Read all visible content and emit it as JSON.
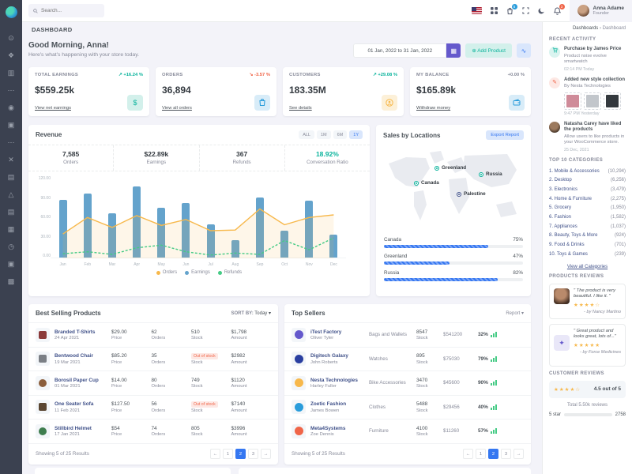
{
  "topbar": {
    "search_placeholder": "Search...",
    "cart_badge": "5",
    "notif_badge": "3",
    "user": {
      "name": "Anna Adame",
      "role": "Founder"
    },
    "icons": [
      "us-flag",
      "apps-grid",
      "shopping-bag",
      "fullscreen",
      "moon",
      "bell"
    ]
  },
  "sidebar": {
    "icons": [
      {
        "name": "dashboards-icon",
        "glyph": "⊙"
      },
      {
        "name": "apps-icon",
        "glyph": "❖"
      },
      {
        "name": "layouts-icon",
        "glyph": "▥"
      },
      {
        "name": "menu-divider-icon",
        "glyph": "⋯"
      },
      {
        "name": "auth-icon",
        "glyph": "◉"
      },
      {
        "name": "pages-icon",
        "glyph": "▣"
      },
      {
        "name": "more-icon",
        "glyph": "⋯"
      },
      {
        "name": "components-icon",
        "glyph": "✕"
      },
      {
        "name": "widgets-icon",
        "glyph": "▤"
      },
      {
        "name": "forms-icon",
        "glyph": "△"
      },
      {
        "name": "invoices-icon",
        "glyph": "▤"
      },
      {
        "name": "tables-icon",
        "glyph": "▦"
      },
      {
        "name": "clock-icon",
        "glyph": "◷"
      },
      {
        "name": "gallery-icon",
        "glyph": "▣"
      },
      {
        "name": "maps-icon",
        "glyph": "▩"
      }
    ]
  },
  "page": {
    "title": "DASHBOARD",
    "crumb_parent": "Dashboards",
    "crumb_sep": "›",
    "crumb_current": "Dashboard"
  },
  "greeting": {
    "title": "Good Morning, Anna!",
    "subtitle": "Here's what's happening with your store today.",
    "date_range": "01 Jan, 2022 to 31 Jan, 2022",
    "add_product": "Add Product",
    "add_product_plus": "⊕",
    "wave_glyph": "∿",
    "calendar_glyph": "▦"
  },
  "stats": [
    {
      "title": "TOTAL EARNINGS",
      "arrow": "↗",
      "change": "+16.24 %",
      "trend": "up",
      "value": "$559.25k",
      "link": "View net earnings",
      "icon": "dollar-icon",
      "glyph": "$"
    },
    {
      "title": "ORDERS",
      "arrow": "↘",
      "change": "-3.57 %",
      "trend": "down",
      "value": "36,894",
      "link": "View all orders",
      "icon": "bag-icon",
      "glyph": "⛁"
    },
    {
      "title": "CUSTOMERS",
      "arrow": "↗",
      "change": "+29.08 %",
      "trend": "up",
      "value": "183.35M",
      "link": "See details",
      "icon": "user-circle-icon",
      "glyph": "◎"
    },
    {
      "title": "MY BALANCE",
      "arrow": "",
      "change": "+0.00 %",
      "trend": "flat",
      "value": "$165.89k",
      "link": "Withdraw money",
      "icon": "wallet-icon",
      "glyph": "▭"
    }
  ],
  "revenue": {
    "title": "Revenue",
    "tabs": [
      "ALL",
      "1M",
      "6M",
      "1Y"
    ],
    "active_tab": "1Y",
    "stats": [
      {
        "value": "7,585",
        "label": "Orders"
      },
      {
        "value": "$22.89k",
        "label": "Earnings"
      },
      {
        "value": "367",
        "label": "Refunds"
      },
      {
        "value": "18.92%",
        "label": "Conversation Ratio"
      }
    ],
    "chart_data": {
      "type": "bar",
      "categories": [
        "Jan",
        "Feb",
        "Mar",
        "Apr",
        "May",
        "Jun",
        "Jul",
        "Aug",
        "Sep",
        "Oct",
        "Nov",
        "Dec"
      ],
      "series": [
        {
          "name": "Orders",
          "type": "area-line",
          "color": "#f7b84b",
          "values": [
            37,
            62,
            47,
            65,
            50,
            59,
            42,
            43,
            75,
            51,
            62,
            66
          ]
        },
        {
          "name": "Earnings",
          "type": "bar",
          "color": "#64a3cc",
          "values": [
            88,
            97,
            67,
            108,
            76,
            83,
            50,
            27,
            91,
            41,
            87,
            35
          ]
        },
        {
          "name": "Refunds",
          "type": "dashed-line",
          "color": "#45cb85",
          "values": [
            7,
            10,
            6,
            16,
            20,
            10,
            5,
            8,
            6,
            27,
            13,
            31
          ]
        }
      ],
      "ylim": [
        0,
        120
      ],
      "yticks": [
        "120.00",
        "90.00",
        "60.00",
        "30.00",
        "0.00"
      ],
      "legend_position": "bottom",
      "grid": false
    }
  },
  "sales": {
    "title": "Sales by Locations",
    "export_label": "Export Report",
    "markers": [
      {
        "name": "Greenland"
      },
      {
        "name": "Canada"
      },
      {
        "name": "Russia"
      },
      {
        "name": "Palestine"
      }
    ],
    "countries": [
      {
        "name": "Canada",
        "pct": "75%",
        "value": 75
      },
      {
        "name": "Greenland",
        "pct": "47%",
        "value": 47
      },
      {
        "name": "Russia",
        "pct": "82%",
        "value": 82
      }
    ]
  },
  "activity": {
    "title": "RECENT ACTIVITY",
    "items": [
      {
        "title": "Purchase by James Price",
        "text": "Product noise evolve smartwatch",
        "time": "02:14 PM Today"
      },
      {
        "title": "Added new style collection",
        "text": "By Nesta Technologies",
        "time": "9:47 PM Yesterday"
      },
      {
        "title": "Natasha Carey have liked the products",
        "text": "Allow users to like products in your WooCommerce store.",
        "time": "25 Dec, 2021"
      }
    ]
  },
  "categories": {
    "title": "TOP 10 CATEGORIES",
    "link": "View all Categories",
    "items": [
      {
        "label": "1. Mobile & Accessories",
        "count": "(10,294)"
      },
      {
        "label": "2. Desktop",
        "count": "(6,256)"
      },
      {
        "label": "3. Electronics",
        "count": "(3,479)"
      },
      {
        "label": "4. Home & Furniture",
        "count": "(2,275)"
      },
      {
        "label": "5. Grocery",
        "count": "(1,950)"
      },
      {
        "label": "6. Fashion",
        "count": "(1,582)"
      },
      {
        "label": "7. Appliances",
        "count": "(1,037)"
      },
      {
        "label": "8. Beauty, Toys & More",
        "count": "(924)"
      },
      {
        "label": "9. Food & Drinks",
        "count": "(701)"
      },
      {
        "label": "10. Toys & Games",
        "count": "(239)"
      }
    ]
  },
  "reviews": {
    "title": "PRODUCTS REVIEWS",
    "items": [
      {
        "quote": "\" The product is very beautiful. I like it. \"",
        "stars": "★★★★☆",
        "author": "- by Nancy Martino"
      },
      {
        "quote": "\" Great product and looks great, lots of...\"",
        "stars": "★★★★★",
        "author": "- by Force Medicines"
      }
    ]
  },
  "customer_reviews": {
    "title": "CUSTOMER REVIEWS",
    "stars": "★★★★☆",
    "rating": "4.5 out of 5",
    "total": "Total 5.50k reviews",
    "first_row": {
      "label": "5 star",
      "count": "2758",
      "value": 50
    }
  },
  "best_selling": {
    "title": "Best Selling Products",
    "sort_label": "SORT BY:",
    "sort_value": "Today ▾",
    "out_of_stock": "Out of stock",
    "labels": {
      "price": "Price",
      "orders": "Orders",
      "stock": "Stock",
      "amount": "Amount"
    },
    "rows": [
      {
        "name": "Branded T-Shirts",
        "date": "24 Apr 2021",
        "price": "$29.00",
        "orders": "62",
        "stock": "510",
        "amount": "$1,798"
      },
      {
        "name": "Bentwood Chair",
        "date": "19 Mar 2021",
        "price": "$85.20",
        "orders": "35",
        "stock": "",
        "amount": "$2982"
      },
      {
        "name": "Borosil Paper Cup",
        "date": "01 Mar 2021",
        "price": "$14.00",
        "orders": "80",
        "stock": "749",
        "amount": "$1120"
      },
      {
        "name": "One Seater Sofa",
        "date": "11 Feb 2021",
        "price": "$127.50",
        "orders": "56",
        "stock": "",
        "amount": "$7140"
      },
      {
        "name": "Stillbird Helmet",
        "date": "17 Jan 2021",
        "price": "$54",
        "orders": "74",
        "stock": "805",
        "amount": "$3996"
      }
    ],
    "footer": "Showing 5 of 25 Results"
  },
  "top_sellers": {
    "title": "Top Sellers",
    "report_label": "Report ▾",
    "stock_label": "Stock",
    "rows": [
      {
        "company": "iTest Factory",
        "person": "Oliver Tyler",
        "category": "Bags and Wallets",
        "stock": "8547",
        "amount": "$541200",
        "pct": "32%"
      },
      {
        "company": "Digitech Galaxy",
        "person": "John Roberts",
        "category": "Watches",
        "stock": "895",
        "amount": "$75030",
        "pct": "79%"
      },
      {
        "company": "Nesta Technologies",
        "person": "Harley Fuller",
        "category": "Bike Accessories",
        "stock": "3470",
        "amount": "$45600",
        "pct": "90%"
      },
      {
        "company": "Zoetic Fashion",
        "person": "James Bowen",
        "category": "Clothes",
        "stock": "5488",
        "amount": "$29456",
        "pct": "40%"
      },
      {
        "company": "Meta4Systems",
        "person": "Zoe Dennis",
        "category": "Furniture",
        "stock": "4100",
        "amount": "$11260",
        "pct": "57%"
      }
    ],
    "footer": "Showing 5 of 25 Results"
  },
  "pagination": {
    "prev": "←",
    "p1": "1",
    "p2": "2",
    "p3": "3",
    "next": "→"
  },
  "colors": {
    "primary": "#3577f1",
    "success": "#0ab39c",
    "danger": "#f06548",
    "warning": "#f7b84b",
    "secondary": "#6559cc",
    "bar": "#64a3cc"
  }
}
